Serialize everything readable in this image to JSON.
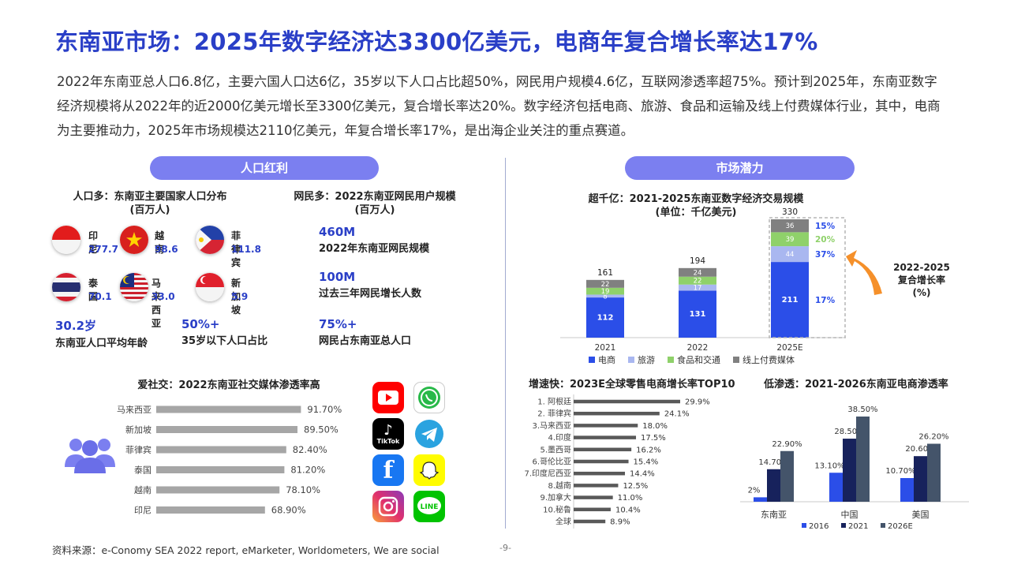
{
  "title": "东南亚市场：2025年数字经济达3300亿美元，电商年复合增长率达17%",
  "intro": "2022年东南亚总人口6.8亿，主要六国人口达6亿，35岁以下人口占比超50%，网民用户规模4.6亿，互联网渗透率超75%。预计到2025年，东南亚数字经济规模将从2022年的近2000亿美元增长至3300亿美元，复合增长率达20%。数字经济包括电商、旅游、食品和运输及线上付费媒体行业，其中，电商为主要推动力，2025年市场规模达2110亿美元，年复合增长率17%，是出海企业关注的重点赛道。",
  "left_section": {
    "pill": "人口红利",
    "population_heading": "人口多：东南亚主要国家人口分布",
    "population_unit": "(百万人)",
    "countries": [
      {
        "name": "印尼",
        "value": "277.7",
        "flag": "indonesia"
      },
      {
        "name": "越南",
        "value": "98.6",
        "flag": "vietnam"
      },
      {
        "name": "菲律宾",
        "value": "111.8",
        "flag": "philippines"
      },
      {
        "name": "泰国",
        "value": "70.1",
        "flag": "thailand"
      },
      {
        "name": "马来西亚",
        "value": "33.0",
        "flag": "malaysia"
      },
      {
        "name": "新加坡",
        "value": "5.9",
        "flag": "singapore"
      }
    ],
    "netizen_heading": "网民多：2022东南亚网民用户规模",
    "netizen_unit": "(百万人)",
    "netizen_stats": [
      {
        "value": "460M",
        "label": "2022年东南亚网民规模"
      },
      {
        "value": "100M",
        "label": "过去三年网民增长人数"
      },
      {
        "value": "75%+",
        "label": "网民占东南亚总人口"
      }
    ],
    "age_stats": [
      {
        "value": "30.2岁",
        "label": "东南亚人口平均年龄"
      },
      {
        "value": "50%+",
        "label": "35岁以下人口占比"
      }
    ]
  },
  "right_section": {
    "pill": "市场潜力"
  },
  "footer": "资料来源：e-Conomy SEA 2022 report, eMarketer, Worldometers, We are social",
  "page_number": "-9-",
  "apps": [
    "YouTube",
    "WhatsApp",
    "TikTok",
    "Telegram",
    "Facebook",
    "Snapchat",
    "Instagram",
    "LINE"
  ],
  "colors": {
    "brand_blue": "#2a3fc7",
    "pill": "#7b7ff0",
    "ecommerce": "#2b4ee8",
    "travel": "#a9b7f0",
    "food": "#8fd16a",
    "media": "#808080",
    "gray_bar": "#a6a6a6",
    "arrow": "#f5902a",
    "s2016": "#2b4ee8",
    "s2021": "#17225c",
    "s2026": "#44546a"
  },
  "chart_data": [
    {
      "id": "social",
      "type": "bar",
      "orientation": "horizontal",
      "title": "爱社交：2022东南亚社交媒体渗透率高",
      "categories": [
        "马来西亚",
        "新加坡",
        "菲律宾",
        "泰国",
        "越南",
        "印尼"
      ],
      "values": [
        91.7,
        89.5,
        82.4,
        81.2,
        78.1,
        68.9
      ],
      "labels": [
        "91.70%",
        "89.50%",
        "82.40%",
        "81.20%",
        "78.10%",
        "68.90%"
      ]
    },
    {
      "id": "digital",
      "type": "bar",
      "stacked": true,
      "title": "超千亿：2021-2025东南亚数字经济交易规模",
      "subtitle": "(单位：千亿美元)",
      "categories": [
        "2021",
        "2022",
        "2025E"
      ],
      "totals": [
        161,
        194,
        330
      ],
      "series": [
        {
          "name": "电商",
          "values": [
            112,
            131,
            211
          ]
        },
        {
          "name": "旅游",
          "values": [
            8,
            17,
            44
          ]
        },
        {
          "name": "食品和交通",
          "values": [
            19,
            22,
            39
          ]
        },
        {
          "name": "线上付费媒体",
          "values": [
            22,
            24,
            36
          ]
        }
      ],
      "cagr": [
        "17%",
        "37%",
        "20%",
        "15%"
      ],
      "cagr_label": "2022-2025复合增长率(%)"
    },
    {
      "id": "growth",
      "type": "bar",
      "orientation": "horizontal",
      "title": "增速快：2023E全球零售电商增长率TOP10",
      "categories": [
        "1. 阿根廷",
        "2. 菲律宾",
        "3.马来西亚",
        "4.印度",
        "5.墨西哥",
        "6.哥伦比亚",
        "7.印度尼西亚",
        "8.越南",
        "9.加拿大",
        "10.秘鲁",
        "全球"
      ],
      "values": [
        29.9,
        24.1,
        18.0,
        17.5,
        16.2,
        15.4,
        14.4,
        12.5,
        11.0,
        10.4,
        8.9
      ],
      "labels": [
        "29.9%",
        "24.1%",
        "18.0%",
        "17.5%",
        "16.2%",
        "15.4%",
        "14.4%",
        "12.5%",
        "11.0%",
        "10.4%",
        "8.9%"
      ]
    },
    {
      "id": "penetration",
      "type": "bar",
      "title": "低渗透：2021-2026东南亚电商渗透率",
      "categories": [
        "东南亚",
        "中国",
        "美国"
      ],
      "series": [
        {
          "name": "2016",
          "values": [
            2,
            13.1,
            10.7
          ],
          "labels": [
            "2%",
            "13.10%",
            "10.70%"
          ]
        },
        {
          "name": "2021",
          "values": [
            14.7,
            28.5,
            20.6
          ],
          "labels": [
            "14.70%",
            "28.50%",
            "20.60%"
          ]
        },
        {
          "name": "2026E",
          "values": [
            22.9,
            38.5,
            26.2
          ],
          "labels": [
            "22.90%",
            "38.50%",
            "26.20%"
          ]
        }
      ]
    }
  ]
}
